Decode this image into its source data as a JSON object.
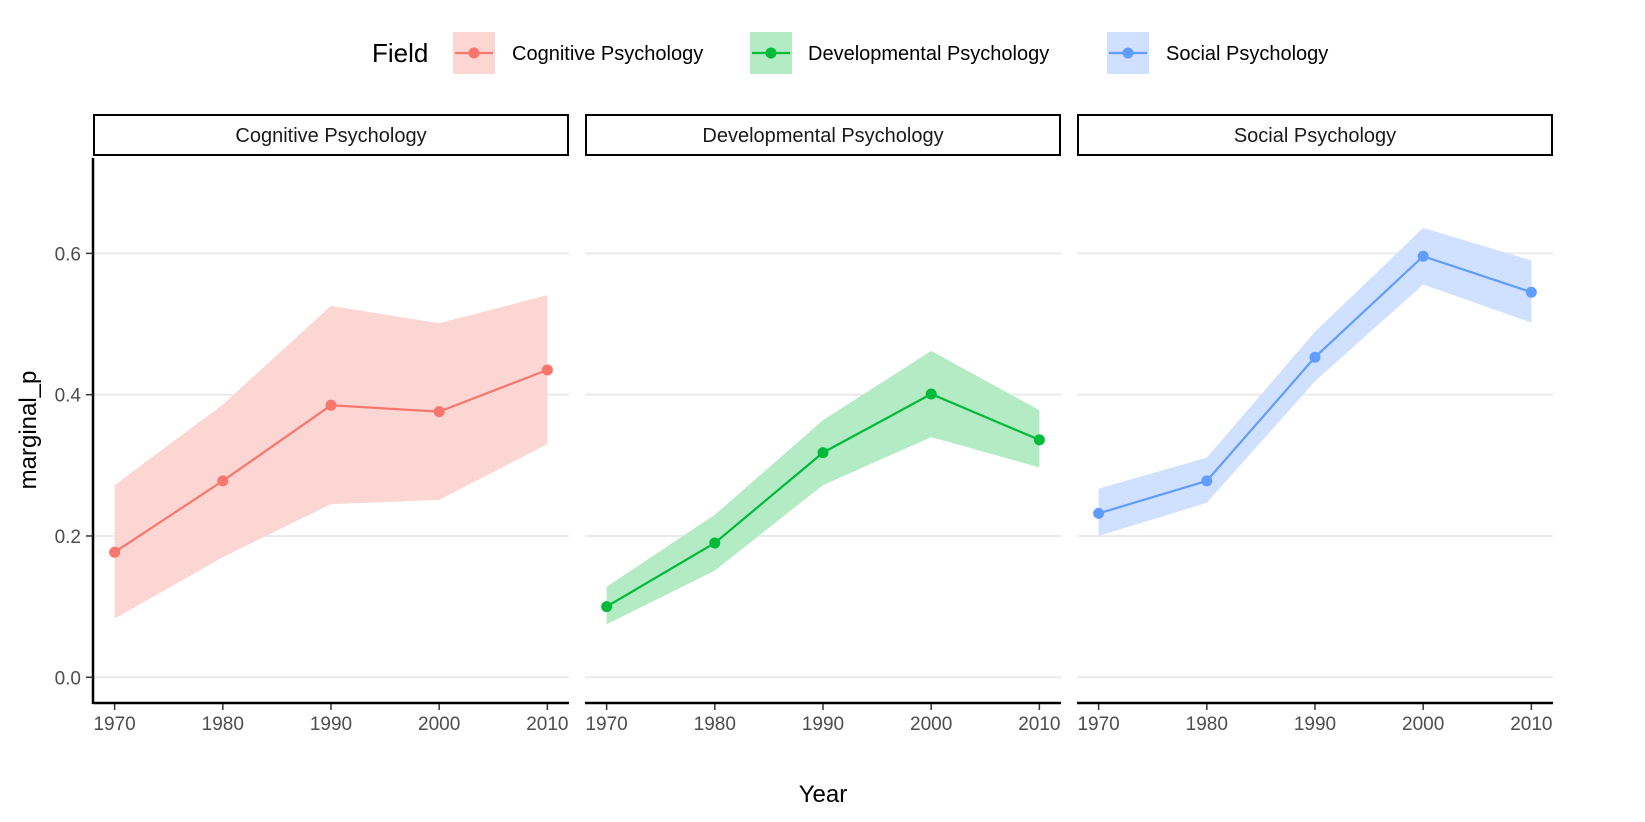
{
  "chart_data": {
    "type": "line",
    "facet_by": "Field",
    "xlabel": "Year",
    "ylabel": "marginal_p",
    "x_ticks": [
      1970,
      1980,
      1990,
      2000,
      2010
    ],
    "y_ticks": [
      0.0,
      0.2,
      0.4,
      0.6
    ],
    "y_tick_labels": [
      "0.0",
      "0.2",
      "0.4",
      "0.6"
    ],
    "ylim": [
      -0.035,
      0.735
    ],
    "xlim": [
      1968,
      2012
    ],
    "grid": "horizontal-major",
    "legend": {
      "title": "Field",
      "placement": "top",
      "entries": [
        "Cognitive Psychology",
        "Developmental Psychology",
        "Social Psychology"
      ]
    },
    "series": [
      {
        "name": "Cognitive Psychology",
        "color": "#F8766D",
        "ribbon_color": "#FCD6D3",
        "x": [
          1970,
          1980,
          1990,
          2000,
          2010
        ],
        "y": [
          0.177,
          0.278,
          0.385,
          0.376,
          0.435
        ],
        "lower": [
          0.083,
          0.17,
          0.245,
          0.251,
          0.33
        ],
        "upper": [
          0.272,
          0.386,
          0.526,
          0.501,
          0.541
        ]
      },
      {
        "name": "Developmental Psychology",
        "color": "#00BA38",
        "ribbon_color": "#B3EBC4",
        "x": [
          1970,
          1980,
          1990,
          2000,
          2010
        ],
        "y": [
          0.1,
          0.19,
          0.318,
          0.401,
          0.336
        ],
        "lower": [
          0.075,
          0.151,
          0.272,
          0.34,
          0.297
        ],
        "upper": [
          0.128,
          0.23,
          0.364,
          0.462,
          0.378
        ]
      },
      {
        "name": "Social Psychology",
        "color": "#619CFF",
        "ribbon_color": "#D0E1FF",
        "x": [
          1970,
          1980,
          1990,
          2000,
          2010
        ],
        "y": [
          0.232,
          0.278,
          0.453,
          0.596,
          0.545
        ],
        "lower": [
          0.2,
          0.247,
          0.419,
          0.556,
          0.502
        ],
        "upper": [
          0.267,
          0.311,
          0.489,
          0.636,
          0.59
        ]
      }
    ]
  }
}
